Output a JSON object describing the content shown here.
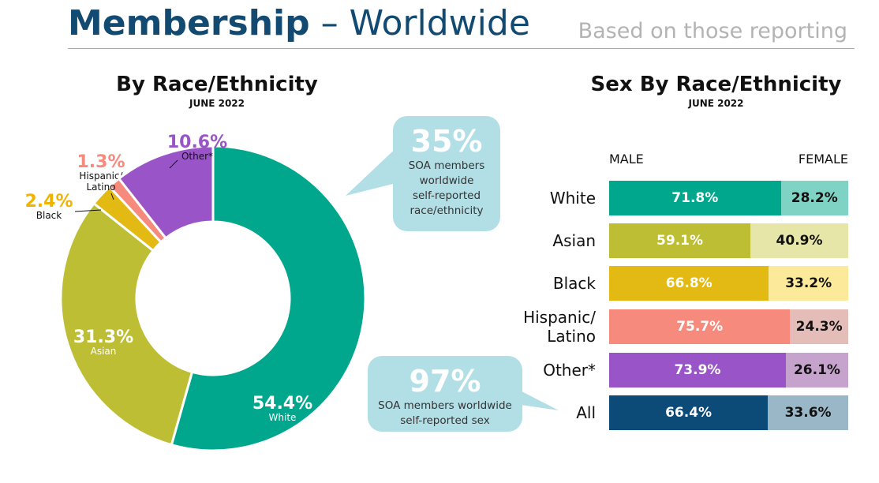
{
  "header": {
    "title_bold": "Membership",
    "title_rest": " – Worldwide",
    "note": "Based on those reporting"
  },
  "chart_data": [
    {
      "type": "pie",
      "variant": "donut",
      "title": "By Race/Ethnicity",
      "subtitle": "JUNE 2022",
      "slices": [
        {
          "label": "White",
          "value": 54.4,
          "display": "54.4%",
          "color": "#00a78c"
        },
        {
          "label": "Asian",
          "value": 31.3,
          "display": "31.3%",
          "color": "#bdbe33"
        },
        {
          "label": "Black",
          "value": 2.4,
          "display": "2.4%",
          "color": "#e3ba14"
        },
        {
          "label": "Hispanic/ Latino",
          "value": 1.3,
          "display": "1.3%",
          "color": "#f68a7c"
        },
        {
          "label": "Other*",
          "value": 10.6,
          "display": "10.6%",
          "color": "#9955c8"
        }
      ]
    },
    {
      "type": "bar",
      "variant": "stacked-100-horizontal",
      "title": "Sex By Race/Ethnicity",
      "subtitle": "JUNE 2022",
      "legend": {
        "male": "MALE",
        "female": "FEMALE"
      },
      "categories": [
        "White",
        "Asian",
        "Black",
        "Hispanic/ Latino",
        "Other*",
        "All"
      ],
      "series": [
        {
          "name": "MALE",
          "values": [
            71.8,
            59.1,
            66.8,
            75.7,
            73.9,
            66.4
          ],
          "display": [
            "71.8%",
            "59.1%",
            "66.8%",
            "75.7%",
            "73.9%",
            "66.4%"
          ],
          "colors": [
            "#00a78c",
            "#bdbe33",
            "#e3ba14",
            "#f68a7c",
            "#9955c8",
            "#0c4a78"
          ]
        },
        {
          "name": "FEMALE",
          "values": [
            28.2,
            40.9,
            33.2,
            24.3,
            26.1,
            33.6
          ],
          "display": [
            "28.2%",
            "40.9%",
            "33.2%",
            "24.3%",
            "26.1%",
            "33.6%"
          ],
          "colors": [
            "#7fd3c4",
            "#e6e6a9",
            "#fde99a",
            "#e4bcb8",
            "#c6a3cc",
            "#9ab7c8"
          ]
        }
      ]
    }
  ],
  "callouts": [
    {
      "value": "35%",
      "text": "SOA members worldwide self-reported race/ethnicity"
    },
    {
      "value": "97%",
      "text": "SOA members worldwide self-reported sex"
    }
  ]
}
